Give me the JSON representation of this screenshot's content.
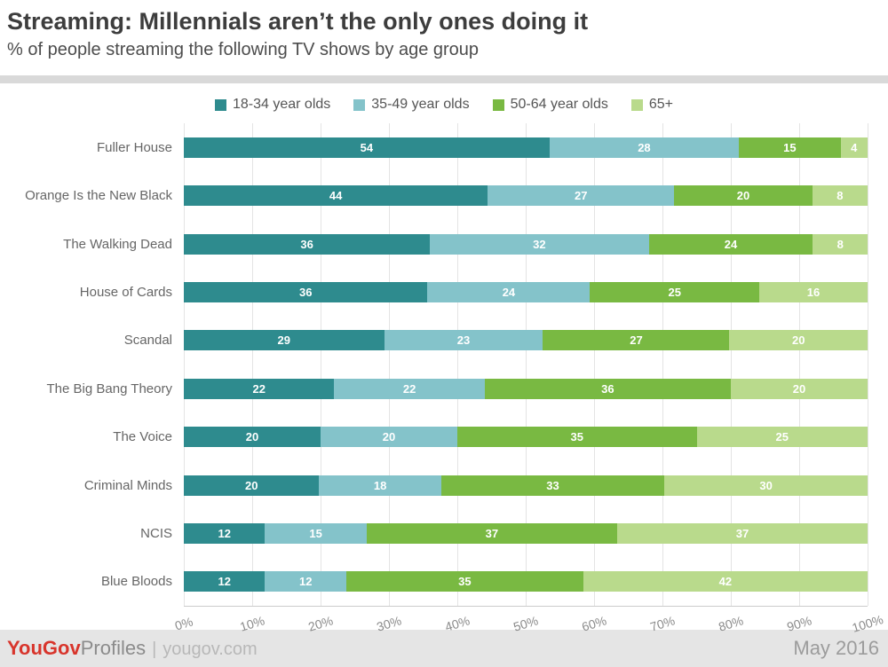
{
  "header": {
    "title": "Streaming: Millennials aren’t the only ones doing it",
    "subtitle": "% of people streaming the following TV shows by age group"
  },
  "chart_data": {
    "type": "bar",
    "orientation": "horizontal",
    "stacked": true,
    "grid": true,
    "legend_position": "top",
    "xlim": [
      0,
      100
    ],
    "x_ticks": [
      "0%",
      "10%",
      "20%",
      "30%",
      "40%",
      "50%",
      "60%",
      "70%",
      "80%",
      "90%",
      "100%"
    ],
    "categories": [
      "Fuller House",
      "Orange Is the New Black",
      "The Walking Dead",
      "House of Cards",
      "Scandal",
      "The Big Bang Theory",
      "The Voice",
      "Criminal Minds",
      "NCIS",
      "Blue Bloods"
    ],
    "series": [
      {
        "name": "18-34 year olds",
        "color": "#2e8b8e",
        "values": [
          54,
          44,
          36,
          36,
          29,
          22,
          20,
          20,
          12,
          12
        ]
      },
      {
        "name": "35-49 year olds",
        "color": "#84c3ca",
        "values": [
          28,
          27,
          32,
          24,
          23,
          22,
          20,
          18,
          15,
          12
        ]
      },
      {
        "name": "50-64 year olds",
        "color": "#79b942",
        "values": [
          15,
          20,
          24,
          25,
          27,
          36,
          35,
          33,
          37,
          35
        ]
      },
      {
        "name": "65+",
        "color": "#b9da8c",
        "values": [
          4,
          8,
          8,
          16,
          20,
          20,
          25,
          30,
          37,
          42
        ]
      }
    ]
  },
  "footer": {
    "brand_you": "YouGov",
    "brand_profiles": "Profiles",
    "separator": "|",
    "site": "yougov.com",
    "date": "May 2016"
  }
}
